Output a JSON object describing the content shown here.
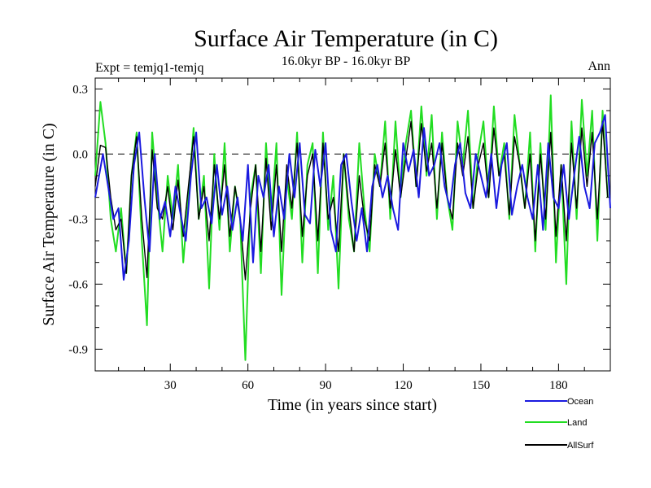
{
  "chart_data": {
    "type": "line",
    "title": "Surface Air Temperature (in C)",
    "subtitle_left": "Expt = temjq1-temjq",
    "subtitle_center": "16.0kyr BP - 16.0kyr BP",
    "subtitle_right": "Ann",
    "xlabel": "Time (in years since start)",
    "ylabel": "Surface Air Temperature (in C)",
    "xlim": [
      1,
      200
    ],
    "ylim": [
      -1.0,
      0.35
    ],
    "xticks": [
      30,
      60,
      90,
      120,
      150,
      180
    ],
    "xtick_labels": [
      "30",
      "60",
      "90",
      "120",
      "150",
      "180"
    ],
    "yticks": [
      0.3,
      0.0,
      -0.3,
      -0.6,
      -0.9
    ],
    "ytick_labels": [
      "0.3",
      "0.0",
      "-0.3",
      "-0.6",
      "-0.9"
    ],
    "reference_line": 0.0,
    "legend_placement": "bottom-right, below plot",
    "series": [
      {
        "name": "Ocean",
        "color": "#1a1adf",
        "x": [
          1,
          4,
          6,
          8,
          10,
          12,
          14,
          16,
          18,
          20,
          22,
          24,
          26,
          28,
          30,
          32,
          34,
          36,
          38,
          40,
          42,
          44,
          46,
          48,
          50,
          52,
          54,
          56,
          58,
          60,
          62,
          64,
          66,
          68,
          70,
          72,
          74,
          76,
          78,
          80,
          82,
          84,
          86,
          88,
          90,
          92,
          94,
          96,
          98,
          100,
          102,
          104,
          106,
          108,
          110,
          112,
          114,
          116,
          118,
          120,
          122,
          124,
          126,
          128,
          130,
          132,
          134,
          136,
          138,
          140,
          142,
          144,
          146,
          148,
          150,
          152,
          154,
          156,
          158,
          160,
          162,
          164,
          166,
          168,
          170,
          172,
          174,
          176,
          178,
          180,
          182,
          184,
          186,
          188,
          190,
          192,
          194,
          196,
          198,
          200
        ],
        "values": [
          -0.2,
          0.0,
          -0.15,
          -0.3,
          -0.25,
          -0.58,
          -0.4,
          -0.05,
          0.1,
          -0.2,
          -0.45,
          0.0,
          -0.3,
          -0.22,
          -0.38,
          -0.15,
          -0.28,
          -0.4,
          -0.1,
          0.1,
          -0.25,
          -0.2,
          -0.32,
          -0.05,
          -0.28,
          -0.15,
          -0.35,
          -0.2,
          -0.4,
          -0.05,
          -0.5,
          -0.1,
          -0.2,
          -0.05,
          -0.38,
          -0.15,
          -0.3,
          0.0,
          -0.2,
          0.05,
          -0.28,
          -0.32,
          0.02,
          -0.15,
          0.05,
          -0.35,
          -0.45,
          -0.05,
          0.0,
          -0.22,
          -0.4,
          -0.25,
          -0.45,
          -0.15,
          -0.05,
          -0.2,
          -0.1,
          -0.25,
          -0.35,
          0.05,
          -0.08,
          0.02,
          -0.2,
          0.12,
          -0.1,
          -0.05,
          0.05,
          -0.15,
          -0.25,
          -0.05,
          0.05,
          -0.18,
          -0.25,
          0.0,
          -0.1,
          -0.2,
          0.0,
          -0.25,
          -0.05,
          0.05,
          -0.28,
          -0.15,
          -0.05,
          -0.2,
          -0.3,
          -0.05,
          -0.35,
          0.05,
          -0.2,
          -0.25,
          -0.05,
          -0.3,
          -0.1,
          0.08,
          -0.15,
          -0.25,
          0.05,
          0.1,
          0.18,
          -0.25
        ]
      },
      {
        "name": "Land",
        "color": "#22dd22",
        "x": [
          1,
          3,
          5,
          7,
          9,
          11,
          13,
          15,
          17,
          19,
          21,
          23,
          25,
          27,
          29,
          31,
          33,
          35,
          37,
          39,
          41,
          43,
          45,
          47,
          49,
          51,
          53,
          55,
          57,
          59,
          61,
          63,
          65,
          67,
          69,
          71,
          73,
          75,
          77,
          79,
          81,
          83,
          85,
          87,
          89,
          91,
          93,
          95,
          97,
          99,
          101,
          103,
          105,
          107,
          109,
          111,
          113,
          115,
          117,
          119,
          121,
          123,
          125,
          127,
          129,
          131,
          133,
          135,
          137,
          139,
          141,
          143,
          145,
          147,
          149,
          151,
          153,
          155,
          157,
          159,
          161,
          163,
          165,
          167,
          169,
          171,
          173,
          175,
          177,
          179,
          181,
          183,
          185,
          187,
          189,
          191,
          193,
          195,
          197,
          199
        ],
        "values": [
          -0.1,
          0.24,
          0.05,
          -0.3,
          -0.45,
          -0.25,
          -0.55,
          -0.1,
          0.1,
          -0.4,
          -0.79,
          0.1,
          -0.2,
          -0.45,
          -0.1,
          -0.3,
          -0.05,
          -0.5,
          -0.2,
          0.12,
          -0.3,
          -0.1,
          -0.62,
          0.0,
          -0.35,
          0.05,
          -0.45,
          -0.15,
          -0.3,
          -0.95,
          -0.2,
          -0.05,
          -0.55,
          0.05,
          -0.3,
          0.05,
          -0.65,
          -0.1,
          -0.3,
          0.1,
          -0.5,
          -0.05,
          0.05,
          -0.55,
          0.1,
          -0.35,
          -0.1,
          -0.62,
          0.0,
          -0.3,
          -0.45,
          0.05,
          -0.25,
          -0.45,
          0.0,
          -0.15,
          0.15,
          -0.3,
          0.15,
          -0.2,
          0.05,
          0.2,
          -0.15,
          0.22,
          -0.1,
          0.18,
          -0.3,
          0.1,
          -0.2,
          -0.35,
          0.15,
          -0.05,
          0.2,
          -0.25,
          0.0,
          0.15,
          -0.2,
          0.22,
          -0.1,
          0.05,
          -0.3,
          0.18,
          -0.05,
          -0.25,
          0.1,
          -0.45,
          0.05,
          -0.35,
          0.27,
          -0.5,
          -0.05,
          -0.6,
          0.15,
          -0.3,
          0.25,
          -0.1,
          0.2,
          -0.4,
          0.2,
          -0.2
        ]
      },
      {
        "name": "AllSurf",
        "color": "#000000",
        "x": [
          1,
          3,
          5,
          7,
          9,
          11,
          13,
          15,
          17,
          19,
          21,
          23,
          25,
          27,
          29,
          31,
          33,
          35,
          37,
          39,
          41,
          43,
          45,
          47,
          49,
          51,
          53,
          55,
          57,
          59,
          61,
          63,
          65,
          67,
          69,
          71,
          73,
          75,
          77,
          79,
          81,
          83,
          85,
          87,
          89,
          91,
          93,
          95,
          97,
          99,
          101,
          103,
          105,
          107,
          109,
          111,
          113,
          115,
          117,
          119,
          121,
          123,
          125,
          127,
          129,
          131,
          133,
          135,
          137,
          139,
          141,
          143,
          145,
          147,
          149,
          151,
          153,
          155,
          157,
          159,
          161,
          163,
          165,
          167,
          169,
          171,
          173,
          175,
          177,
          179,
          181,
          183,
          185,
          187,
          189,
          191,
          193,
          195,
          197,
          199
        ],
        "values": [
          -0.15,
          0.04,
          0.03,
          -0.2,
          -0.35,
          -0.3,
          -0.55,
          -0.1,
          0.08,
          -0.3,
          -0.57,
          0.02,
          -0.25,
          -0.3,
          -0.15,
          -0.35,
          -0.12,
          -0.38,
          -0.15,
          0.08,
          -0.3,
          -0.15,
          -0.4,
          -0.05,
          -0.3,
          -0.05,
          -0.38,
          -0.15,
          -0.3,
          -0.58,
          -0.25,
          -0.05,
          -0.45,
          -0.02,
          -0.35,
          -0.05,
          -0.45,
          -0.05,
          -0.25,
          0.05,
          -0.38,
          -0.1,
          0.0,
          -0.4,
          0.05,
          -0.3,
          -0.2,
          -0.45,
          0.0,
          -0.25,
          -0.45,
          -0.1,
          -0.3,
          -0.4,
          -0.05,
          -0.15,
          0.05,
          -0.25,
          0.02,
          -0.2,
          -0.02,
          0.15,
          -0.15,
          0.14,
          -0.08,
          0.05,
          -0.25,
          0.05,
          -0.2,
          -0.3,
          0.05,
          -0.1,
          0.08,
          -0.25,
          -0.05,
          0.05,
          -0.2,
          0.12,
          -0.1,
          0.0,
          -0.28,
          0.08,
          -0.05,
          -0.25,
          0.0,
          -0.4,
          0.0,
          -0.3,
          0.1,
          -0.38,
          -0.05,
          -0.4,
          0.05,
          -0.25,
          0.12,
          -0.15,
          0.1,
          -0.3,
          0.15,
          -0.2
        ]
      }
    ]
  }
}
